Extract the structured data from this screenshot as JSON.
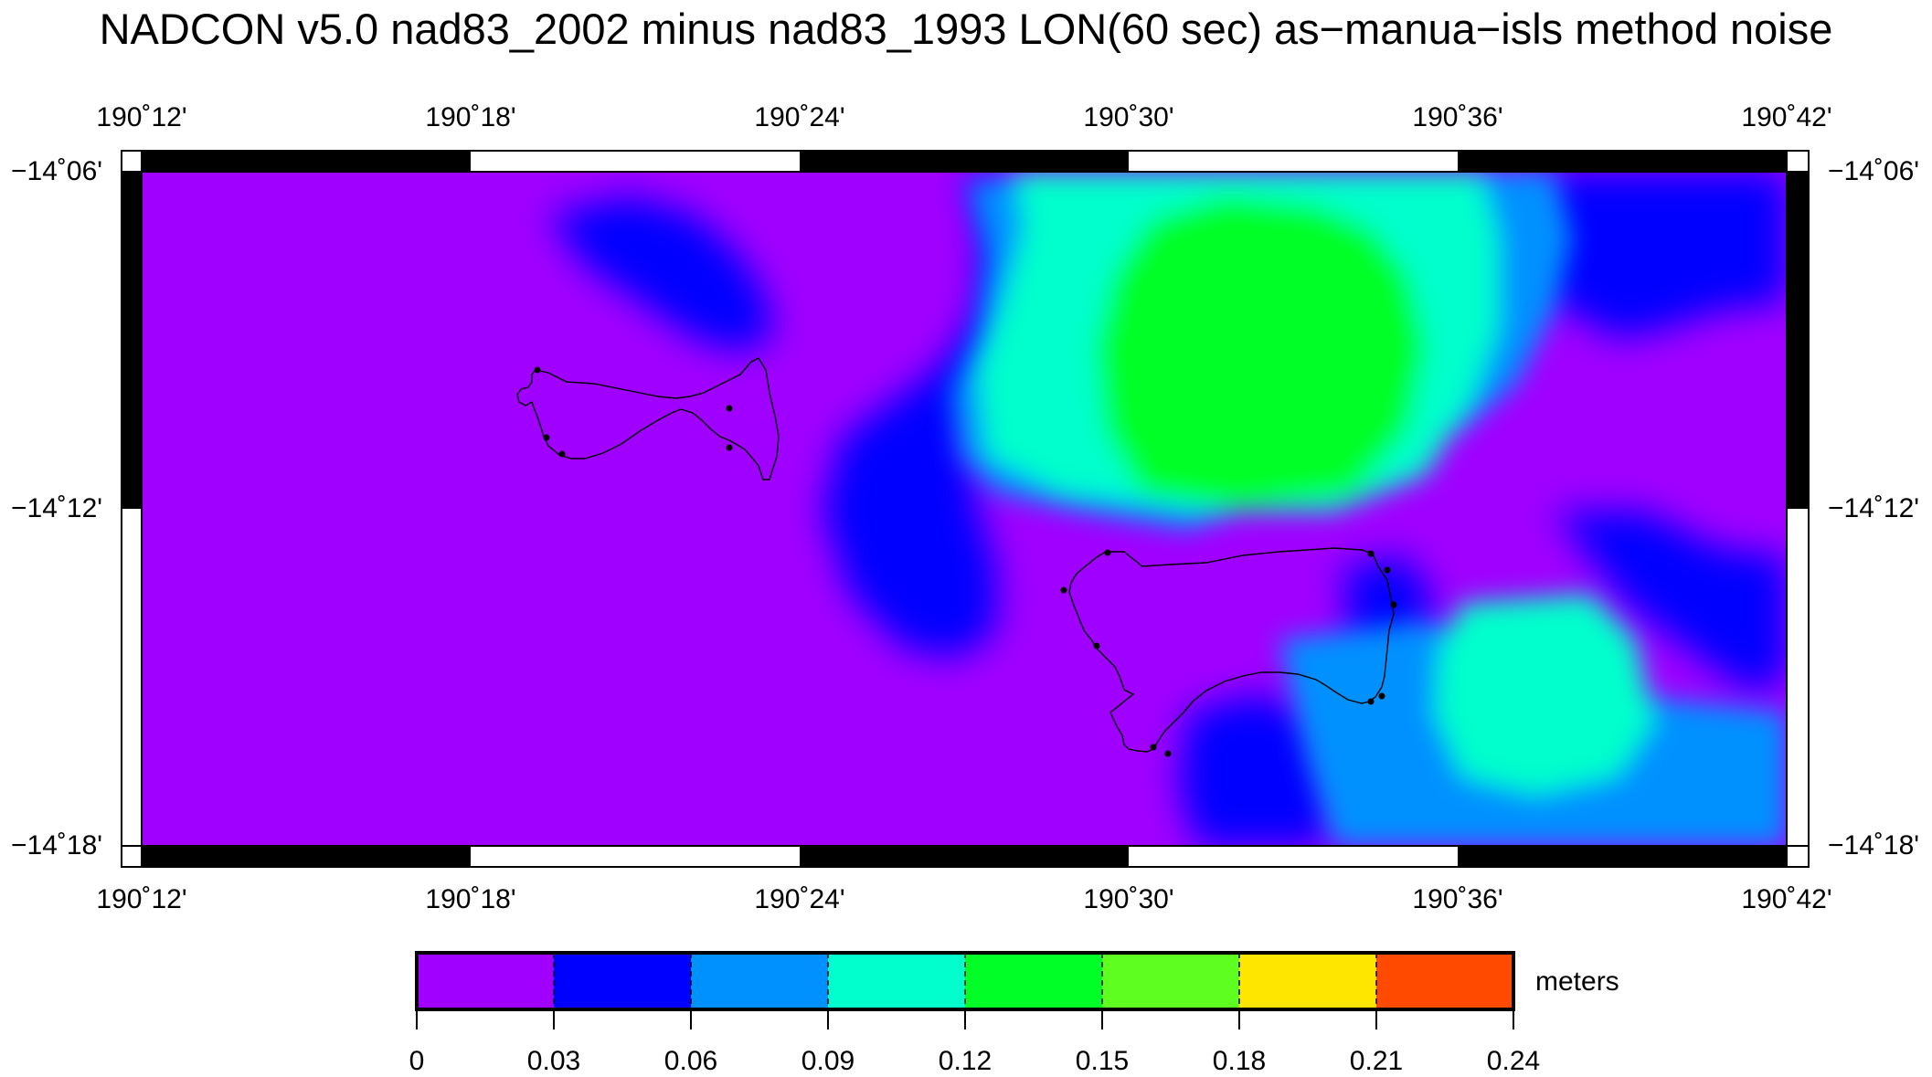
{
  "title": "NADCON v5.0 nad83_2002 minus nad83_1993 LON(60 sec) as−manua−isls method noise",
  "map": {
    "lon_ticks": [
      "190˚12'",
      "190˚18'",
      "190˚24'",
      "190˚30'",
      "190˚36'",
      "190˚42'"
    ],
    "lat_ticks": [
      "−14˚06'",
      "−14˚12'",
      "−14˚18'"
    ],
    "lon_range": [
      190.2,
      190.7
    ],
    "lat_range": [
      -14.3,
      -14.1
    ]
  },
  "colorbar": {
    "units": "meters",
    "ticks": [
      "0",
      "0.03",
      "0.06",
      "0.09",
      "0.12",
      "0.15",
      "0.18",
      "0.21",
      "0.24"
    ],
    "range": [
      0,
      0.24
    ],
    "colors": [
      "#a000ff",
      "#0000ff",
      "#0091ff",
      "#00ffcc",
      "#00ff26",
      "#5eff20",
      "#ffe600",
      "#ff4a00"
    ]
  },
  "colors": {
    "purple": "#a000ff",
    "blue": "#0000ff",
    "light_blue": "#0091ff",
    "cyan": "#00ffcc",
    "green": "#00ff26",
    "frame": "#000000"
  }
}
